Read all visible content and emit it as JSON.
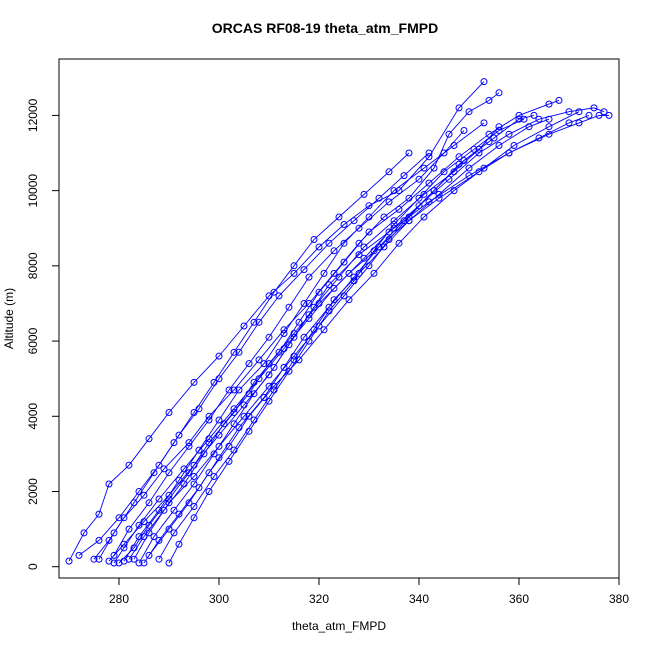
{
  "chart_data": {
    "type": "line",
    "title": "ORCAS RF08-19 theta_atm_FMPD",
    "xlabel": "theta_atm_FMPD",
    "ylabel": "Altitude (m)",
    "xlim": [
      268,
      380
    ],
    "ylim": [
      -300,
      13500
    ],
    "x_ticks": [
      280,
      300,
      320,
      340,
      360,
      380
    ],
    "y_ticks": [
      0,
      2000,
      4000,
      6000,
      8000,
      10000,
      12000
    ],
    "grid": false,
    "legend": "none",
    "colors": {
      "series": "#0000ff",
      "axis": "#000000"
    },
    "series": [
      {
        "x": [
          270,
          273,
          276,
          278,
          282,
          286,
          290,
          295,
          300,
          305,
          310,
          315,
          320,
          325,
          330,
          336,
          342,
          348,
          353
        ],
        "y": [
          150,
          900,
          1400,
          2200,
          2700,
          3400,
          4100,
          4900,
          5600,
          6400,
          7200,
          7800,
          8500,
          9100,
          9600,
          10000,
          10900,
          12200,
          12900
        ]
      },
      {
        "x": [
          275,
          278,
          281,
          285,
          289,
          294,
          298,
          303,
          308,
          313,
          318,
          323,
          328,
          333,
          338,
          343,
          346,
          350,
          354,
          356
        ],
        "y": [
          200,
          700,
          1300,
          1900,
          2600,
          3300,
          4000,
          4700,
          5500,
          6300,
          7000,
          7800,
          8600,
          9300,
          9800,
          10600,
          11500,
          12100,
          12400,
          12600
        ]
      },
      {
        "x": [
          278,
          281,
          285,
          290,
          295,
          300,
          305,
          310,
          314,
          318,
          322,
          328,
          335,
          342,
          350,
          358,
          366,
          372,
          376,
          378
        ],
        "y": [
          150,
          600,
          1200,
          1900,
          2700,
          3500,
          4300,
          5100,
          5900,
          6700,
          7500,
          8300,
          9000,
          9700,
          10400,
          11000,
          11500,
          11800,
          12000,
          12000
        ]
      },
      {
        "x": [
          280,
          283,
          286,
          290,
          294,
          298,
          303,
          307,
          312,
          316,
          320,
          325,
          330,
          336,
          342,
          348,
          354,
          360,
          366,
          368
        ],
        "y": [
          100,
          500,
          1100,
          1800,
          2500,
          3300,
          4100,
          4900,
          5700,
          6500,
          7300,
          8100,
          8900,
          9500,
          10200,
          10900,
          11500,
          12000,
          12300,
          12400
        ]
      },
      {
        "x": [
          282,
          285,
          289,
          293,
          297,
          301,
          306,
          310,
          315,
          320,
          326,
          332,
          338,
          344,
          352,
          358,
          364,
          370,
          374
        ],
        "y": [
          200,
          800,
          1500,
          2200,
          3000,
          3800,
          4600,
          5400,
          6200,
          7000,
          7800,
          8500,
          9200,
          9800,
          10500,
          11000,
          11400,
          11800,
          12000
        ]
      },
      {
        "x": [
          285,
          288,
          292,
          296,
          300,
          304,
          309,
          313,
          317,
          322,
          327,
          332,
          337,
          343,
          349,
          355,
          360,
          363
        ],
        "y": [
          100,
          700,
          1400,
          2100,
          2900,
          3700,
          4500,
          5300,
          6100,
          6900,
          7700,
          8500,
          9200,
          10000,
          10800,
          11400,
          11900,
          12000
        ]
      },
      {
        "x": [
          288,
          291,
          295,
          299,
          303,
          307,
          311,
          315,
          319,
          323,
          328,
          333,
          338,
          344,
          350,
          356,
          362,
          366
        ],
        "y": [
          200,
          900,
          1600,
          2400,
          3100,
          3900,
          4700,
          5500,
          6300,
          7100,
          7800,
          8500,
          9200,
          9900,
          10600,
          11200,
          11700,
          11900
        ]
      },
      {
        "x": [
          290,
          292,
          295,
          298,
          302,
          306,
          310,
          314,
          318,
          322,
          327,
          331,
          335,
          340,
          345,
          351,
          356,
          361
        ],
        "y": [
          100,
          600,
          1300,
          2000,
          2800,
          3600,
          4400,
          5200,
          6000,
          6800,
          7600,
          8400,
          9100,
          9800,
          10500,
          11100,
          11600,
          11900
        ]
      },
      {
        "x": [
          272,
          276,
          280,
          284,
          288,
          292,
          296,
          300,
          304,
          308,
          312,
          317,
          322,
          327,
          332,
          337,
          342
        ],
        "y": [
          300,
          700,
          1300,
          2000,
          2700,
          3500,
          4200,
          5000,
          5700,
          6500,
          7200,
          7900,
          8600,
          9200,
          9800,
          10400,
          11000
        ]
      },
      {
        "x": [
          279,
          282,
          286,
          290,
          294,
          298,
          302,
          306,
          310,
          314,
          318,
          323,
          328,
          334,
          340,
          345,
          349
        ],
        "y": [
          300,
          1000,
          1700,
          2500,
          3200,
          3900,
          4700,
          5400,
          6100,
          6900,
          7700,
          8400,
          9000,
          9700,
          10300,
          11000,
          11600
        ]
      },
      {
        "x": [
          281,
          284,
          288,
          292,
          296,
          300,
          304,
          309,
          313,
          317,
          321,
          325,
          330,
          335,
          341,
          347,
          353
        ],
        "y": [
          150,
          800,
          1500,
          2300,
          3100,
          3900,
          4700,
          5400,
          6200,
          7000,
          7800,
          8600,
          9300,
          10000,
          10600,
          11200,
          11800
        ]
      },
      {
        "x": [
          284,
          287,
          291,
          295,
          299,
          303,
          307,
          311,
          315,
          319,
          324,
          329,
          335,
          341,
          347,
          352,
          356
        ],
        "y": [
          100,
          800,
          1500,
          2200,
          3000,
          3800,
          4600,
          5300,
          6100,
          6900,
          7700,
          8500,
          9200,
          9900,
          10500,
          11100,
          11700
        ]
      },
      {
        "x": [
          276,
          279,
          283,
          287,
          291,
          295,
          299,
          303,
          307,
          311,
          315,
          319,
          324,
          329,
          334,
          338
        ],
        "y": [
          200,
          900,
          1700,
          2500,
          3300,
          4100,
          4900,
          5700,
          6500,
          7300,
          8000,
          8700,
          9300,
          9900,
          10500,
          11000
        ]
      },
      {
        "x": [
          286,
          290,
          294,
          298,
          302,
          306,
          311,
          316,
          321,
          326,
          331,
          336,
          341,
          347,
          353,
          359,
          366,
          372
        ],
        "y": [
          300,
          1000,
          1700,
          2500,
          3200,
          4000,
          4800,
          5500,
          6300,
          7100,
          7800,
          8600,
          9300,
          10000,
          10600,
          11200,
          11700,
          12100
        ]
      },
      {
        "x": [
          279,
          281,
          284,
          288,
          293,
          298,
          303,
          308,
          313,
          318,
          323,
          329,
          334,
          340,
          346,
          352,
          358,
          364,
          370,
          375,
          377
        ],
        "y": [
          100,
          500,
          1100,
          1800,
          2600,
          3400,
          4200,
          5000,
          5800,
          6600,
          7400,
          8200,
          8900,
          9600,
          10300,
          11000,
          11500,
          11900,
          12100,
          12200,
          12100
        ]
      },
      {
        "x": [
          283,
          286,
          290,
          295,
          300,
          305,
          310,
          315,
          320,
          325,
          330,
          334,
          338,
          343,
          348,
          354
        ],
        "y": [
          200,
          900,
          1700,
          2400,
          3200,
          4000,
          4800,
          5600,
          6400,
          7200,
          8000,
          8700,
          9300,
          10000,
          10700,
          11300
        ]
      }
    ]
  }
}
